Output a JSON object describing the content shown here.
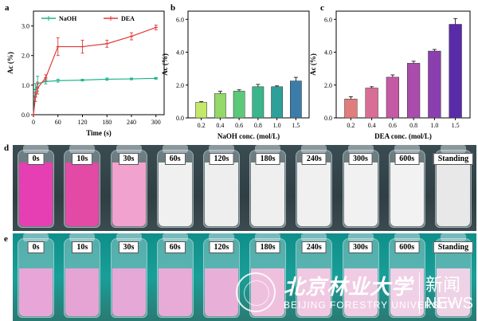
{
  "panels": {
    "a": "a",
    "b": "b",
    "c": "c",
    "d": "d",
    "e": "e"
  },
  "chart_data": [
    {
      "id": "a",
      "type": "line",
      "xlabel": "Time (s)",
      "ylabel": "Ac (%)",
      "xlim": [
        0,
        320
      ],
      "ylim": [
        0,
        3.5
      ],
      "xticks": [
        0,
        60,
        120,
        180,
        240,
        300
      ],
      "yticks": [
        0.0,
        1.0,
        2.0,
        3.0
      ],
      "ytick_labels": [
        "0.0",
        "1.0",
        "2.0",
        "3.0"
      ],
      "legend_position": "top",
      "series": [
        {
          "name": "NaOH",
          "color": "#19b38a",
          "x": [
            0,
            5,
            10,
            30,
            60,
            120,
            180,
            240,
            300
          ],
          "y": [
            0.0,
            0.85,
            1.05,
            1.12,
            1.15,
            1.17,
            1.2,
            1.21,
            1.23
          ],
          "err": [
            0,
            0.2,
            0.25,
            0.08,
            0.05,
            0.03,
            0.04,
            0.03,
            0.03
          ]
        },
        {
          "name": "DEA",
          "color": "#e03a3a",
          "x": [
            0,
            5,
            10,
            30,
            60,
            120,
            180,
            240,
            300
          ],
          "y": [
            0.0,
            0.6,
            0.9,
            1.25,
            2.3,
            2.3,
            2.4,
            2.65,
            2.95
          ],
          "err": [
            0,
            0.15,
            0.2,
            0.1,
            0.3,
            0.22,
            0.12,
            0.12,
            0.08
          ]
        }
      ]
    },
    {
      "id": "b",
      "type": "bar",
      "xlabel": "NaOH conc. (mol/L)",
      "ylabel": "Ac (%)",
      "ylim": [
        0,
        6.5
      ],
      "yticks": [
        0.0,
        2.0,
        4.0,
        6.0
      ],
      "ytick_labels": [
        "0.0",
        "2.0",
        "4.0",
        "6.0"
      ],
      "categories": [
        "0.2",
        "0.4",
        "0.6",
        "0.8",
        "1.0",
        "1.5"
      ],
      "values": [
        0.95,
        1.48,
        1.63,
        1.9,
        1.9,
        2.25
      ],
      "err": [
        0.04,
        0.14,
        0.08,
        0.14,
        0.05,
        0.22
      ],
      "colors": [
        "#c4e86a",
        "#94d86a",
        "#5cc879",
        "#3ab58c",
        "#2ea09a",
        "#3b7da8"
      ]
    },
    {
      "id": "c",
      "type": "bar",
      "xlabel": "DEA conc. (mol/L)",
      "ylabel": "Ac (%)",
      "ylim": [
        0,
        6.5
      ],
      "yticks": [
        0.0,
        2.0,
        4.0,
        6.0
      ],
      "ytick_labels": [
        "0.0",
        "2.0",
        "4.0",
        "6.0"
      ],
      "categories": [
        "0.2",
        "0.4",
        "0.6",
        "0.8",
        "1.0",
        "1.5"
      ],
      "values": [
        1.15,
        1.82,
        2.48,
        3.33,
        4.07,
        5.7
      ],
      "err": [
        0.14,
        0.08,
        0.14,
        0.12,
        0.1,
        0.35
      ],
      "colors": [
        "#e27d7d",
        "#d86e95",
        "#c45aa6",
        "#a94cac",
        "#8b3fae",
        "#5a2ba8"
      ]
    }
  ],
  "photos": {
    "d": {
      "labels": [
        "0s",
        "10s",
        "30s",
        "60s",
        "120s",
        "180s",
        "240s",
        "300s",
        "600s",
        "Standing"
      ],
      "liquid_colors": [
        "#e63fb4",
        "#e24aa6",
        "#f2a2cf",
        "#f0f0f0",
        "#eeeeee",
        "#efefef",
        "#f0f0f0",
        "#f1f1f1",
        "#f2f2f2",
        "#e8e8e8"
      ]
    },
    "e": {
      "labels": [
        "0s",
        "10s",
        "30s",
        "60s",
        "120s",
        "180s",
        "240s",
        "300s",
        "600s",
        "Standing"
      ],
      "liquid_colors": [
        "#e8a6d8",
        "#e6a4d4",
        "#e6a8d6",
        "#e8aad6",
        "#e8b0d8",
        "#eec0de",
        "#f0c8e2",
        "#f0cce4",
        "#f0d0e6",
        "#eed2e6"
      ]
    }
  },
  "watermark": {
    "cn": "北京林业大学",
    "en": "BEIJING FORESTRY UNIVERSITY",
    "news_cn": "新闻",
    "news_en": "NEWS"
  }
}
